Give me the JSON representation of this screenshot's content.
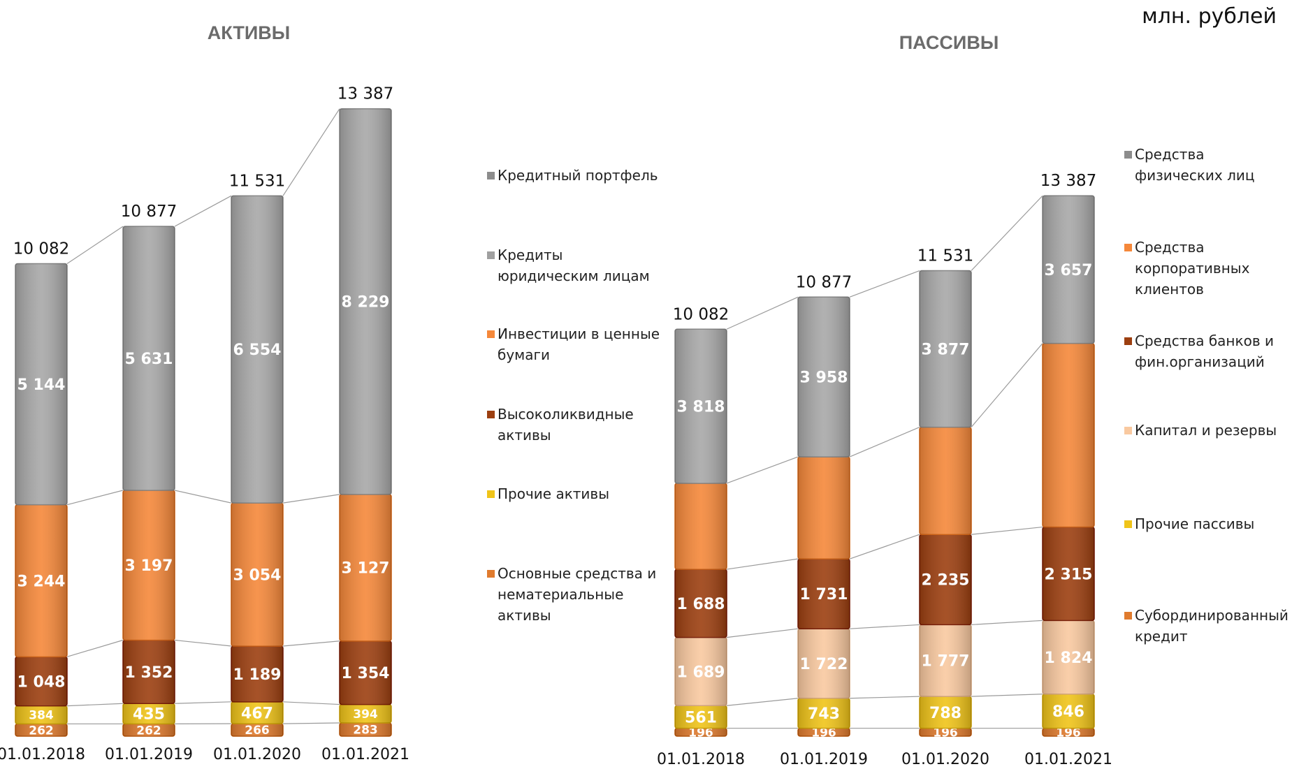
{
  "unit": "млн. рублей",
  "chart_data": [
    {
      "type": "bar",
      "stacked": true,
      "title": "АКТИВЫ",
      "categories": [
        "01.01.2018",
        "01.01.2019",
        "01.01.2020",
        "01.01.2021"
      ],
      "totals": [
        "10 082",
        "10 877",
        "11 531",
        "13 387"
      ],
      "total_values": [
        10082,
        10877,
        11531,
        13387
      ],
      "series": [
        {
          "name": "Основные средства и нематериальные активы",
          "color": "#e07b2e",
          "values": [
            262,
            262,
            266,
            283
          ],
          "labels": [
            "262",
            "262",
            "266",
            "283"
          ]
        },
        {
          "name": "Прочие активы",
          "color": "#f0c419",
          "values": [
            384,
            435,
            467,
            394
          ],
          "labels": [
            "384",
            "435",
            "467",
            "394"
          ]
        },
        {
          "name": "Высоколиквидные активы",
          "color": "#9c3f10",
          "values": [
            1048,
            1352,
            1189,
            1354
          ],
          "labels": [
            "1 048",
            "1 352",
            "1 189",
            "1 354"
          ]
        },
        {
          "name": "Инвестиции в ценные бумаги",
          "color": "#f5883a",
          "values": [
            3244,
            3197,
            3054,
            3127
          ],
          "labels": [
            "3 244",
            "3 197",
            "3 054",
            "3 127"
          ]
        },
        {
          "name": "Кредиты юридическим лицам",
          "color": "#a8a8a8",
          "values": [
            5144,
            5631,
            6554,
            8229
          ],
          "labels": [
            "5 144",
            "5 631",
            "6 554",
            "8 229"
          ]
        }
      ],
      "legend": [
        {
          "label": "Кредитный портфель",
          "color": "#8c8c8c"
        },
        {
          "label": "Кредиты юридическим лицам",
          "color": "#a0a0a0"
        },
        {
          "label": "Инвестиции в ценные бумаги",
          "color": "#f5883a"
        },
        {
          "label": "Высоколиквидные активы",
          "color": "#9c3f10"
        },
        {
          "label": "Прочие активы",
          "color": "#f0c419"
        },
        {
          "label": "Основные средства и нематериальные активы",
          "color": "#e07b2e"
        }
      ],
      "ylim": [
        0,
        13387
      ],
      "grid": false,
      "legend_position": "right"
    },
    {
      "type": "bar",
      "stacked": true,
      "title": "ПАССИВЫ",
      "categories": [
        "01.01.2018",
        "01.01.2019",
        "01.01.2020",
        "01.01.2021"
      ],
      "totals": [
        "10 082",
        "10 877",
        "11 531",
        "13 387"
      ],
      "total_values": [
        10082,
        10877,
        11531,
        13387
      ],
      "series": [
        {
          "name": "Субординированный кредит",
          "color": "#e07b2e",
          "values": [
            196,
            196,
            196,
            196
          ],
          "labels": [
            "196",
            "196",
            "196",
            "196"
          ]
        },
        {
          "name": "Прочие пассивы",
          "color": "#f0c419",
          "values": [
            561,
            743,
            788,
            846
          ],
          "labels": [
            "561",
            "743",
            "788",
            "846"
          ]
        },
        {
          "name": "Капитал и резервы",
          "color": "#f9c9a0",
          "values": [
            1689,
            1722,
            1777,
            1824
          ],
          "labels": [
            "1 689",
            "1 722",
            "1 777",
            "1 824"
          ]
        },
        {
          "name": "Средства банков и фин.организаций",
          "color": "#9c3f10",
          "values": [
            1688,
            1731,
            2235,
            2315
          ],
          "labels": [
            "1 688",
            "1 731",
            "2 235",
            "2 315"
          ]
        },
        {
          "name": "Средства корпоративных клиентов",
          "color": "#f5883a",
          "values": [
            2130,
            2527,
            2658,
            4549
          ],
          "labels": [
            "",
            "",
            "",
            ""
          ]
        },
        {
          "name": "Средства физических лиц",
          "color": "#a8a8a8",
          "values": [
            3818,
            3958,
            3877,
            3657
          ],
          "labels": [
            "3 818",
            "3 958",
            "3 877",
            "3 657"
          ]
        }
      ],
      "legend": [
        {
          "label": "Средства физических лиц",
          "color": "#8c8c8c"
        },
        {
          "label": "Средства корпоративных клиентов",
          "color": "#f5883a"
        },
        {
          "label": "Средства банков и фин.организаций",
          "color": "#9c3f10"
        },
        {
          "label": "Капитал и резервы",
          "color": "#f9c9a0"
        },
        {
          "label": "Прочие пассивы",
          "color": "#f0c419"
        },
        {
          "label": "Субординированный кредит",
          "color": "#e07b2e"
        }
      ],
      "ylim": [
        0,
        13387
      ],
      "grid": false,
      "legend_position": "right"
    }
  ]
}
